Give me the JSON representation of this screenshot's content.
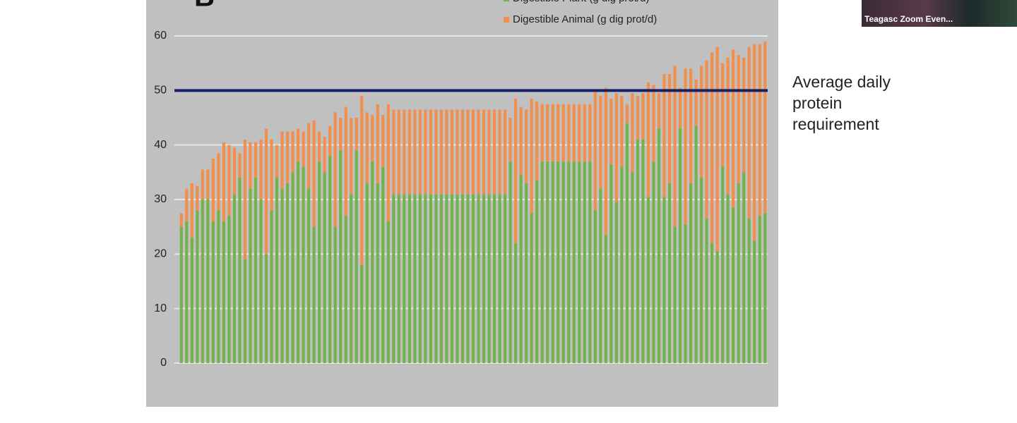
{
  "chart_data": {
    "type": "stacked-bar",
    "panel_label": "B",
    "categories": [
      null,
      null,
      null,
      null,
      null,
      null,
      null,
      null,
      null,
      null,
      null,
      null,
      null,
      null,
      null,
      null,
      null,
      null,
      null,
      null,
      null,
      null,
      null,
      null,
      null,
      null,
      null,
      null,
      null,
      null,
      null,
      null,
      null,
      null,
      null,
      null,
      null,
      null,
      null,
      null,
      null,
      null,
      null,
      null,
      null,
      null,
      null,
      null,
      null,
      null,
      null,
      null,
      null,
      null,
      null,
      null,
      null,
      null,
      null,
      null,
      null,
      null,
      null,
      null,
      null,
      null,
      null,
      null,
      null,
      null,
      null,
      null,
      null,
      null,
      null,
      null,
      null,
      null,
      null,
      null,
      null,
      null,
      null,
      null,
      null,
      null,
      null,
      null,
      null,
      null,
      null,
      null,
      null,
      null,
      null,
      null,
      null,
      null,
      null,
      null,
      null,
      null,
      null,
      null,
      null,
      null,
      null,
      null,
      null,
      null,
      null
    ],
    "series": [
      {
        "name": "Digestible Plant (g dig prot/d)",
        "color": "#72b34e",
        "values": [
          25,
          26,
          23,
          28,
          30,
          30,
          26,
          28,
          26,
          27,
          31,
          34,
          19,
          32,
          34,
          30,
          20,
          28,
          34,
          32,
          33,
          35,
          37,
          36,
          32,
          25,
          37,
          35,
          38,
          25,
          39,
          27,
          31,
          39,
          18,
          33,
          37,
          33,
          36,
          26,
          31,
          31,
          31,
          31,
          31,
          31,
          31,
          31,
          31,
          31,
          31,
          31,
          31,
          31,
          31,
          31,
          31,
          31,
          31,
          31,
          31,
          31,
          37,
          22,
          34.5,
          33,
          27.5,
          33.5,
          37,
          37,
          37,
          37,
          37,
          37,
          37,
          37,
          37,
          37,
          28,
          32,
          23.5,
          36.5,
          29.5,
          36,
          44,
          35,
          41,
          41,
          30.5,
          37,
          43,
          30.5,
          33,
          25,
          43,
          25.5,
          33,
          43.5,
          34,
          26.5,
          22,
          20.5,
          36,
          31,
          28.5,
          33,
          35,
          26.5,
          22.5,
          27,
          27.5
        ]
      },
      {
        "name": "Digestible Animal (g dig prot/d)",
        "color": "#f38f4c",
        "values": [
          2.5,
          6,
          10,
          4.5,
          5.5,
          5.5,
          11.5,
          10.5,
          14.5,
          13,
          8.5,
          4.5,
          22,
          8.5,
          6.5,
          11,
          23,
          13,
          6,
          10.5,
          9.5,
          7.5,
          6,
          6.5,
          12,
          19.5,
          5.5,
          6.5,
          5.5,
          21,
          6,
          20,
          14,
          6,
          31,
          13,
          8.5,
          14.5,
          9.5,
          21.5,
          15.5,
          15.5,
          15.5,
          15.5,
          15.5,
          15.5,
          15.5,
          15.5,
          15.5,
          15.5,
          15.5,
          15.5,
          15.5,
          15.5,
          15.5,
          15.5,
          15.5,
          15.5,
          15.5,
          15.5,
          15.5,
          15.5,
          8,
          26.5,
          12.5,
          13.5,
          21,
          14.5,
          10.5,
          10.5,
          10.5,
          10.5,
          10.5,
          10.5,
          10.5,
          10.5,
          10.5,
          10.5,
          22,
          17,
          27,
          12,
          20,
          13,
          3.5,
          14.5,
          8,
          8.5,
          21,
          14,
          6.5,
          22.5,
          20,
          29.5,
          7.5,
          28.5,
          21,
          8.5,
          20.5,
          29,
          35,
          37.5,
          19,
          25,
          29,
          23.5,
          21,
          31.5,
          36,
          31.5,
          31.5
        ]
      }
    ],
    "ylim": [
      0,
      60
    ],
    "yticks": [
      0,
      10,
      20,
      30,
      40,
      50,
      60
    ],
    "grid": true,
    "reference_line": {
      "value": 50,
      "label": "Average daily protein requirement",
      "color": "#14206a"
    }
  },
  "video_label": "Teagasc Zoom Even..."
}
